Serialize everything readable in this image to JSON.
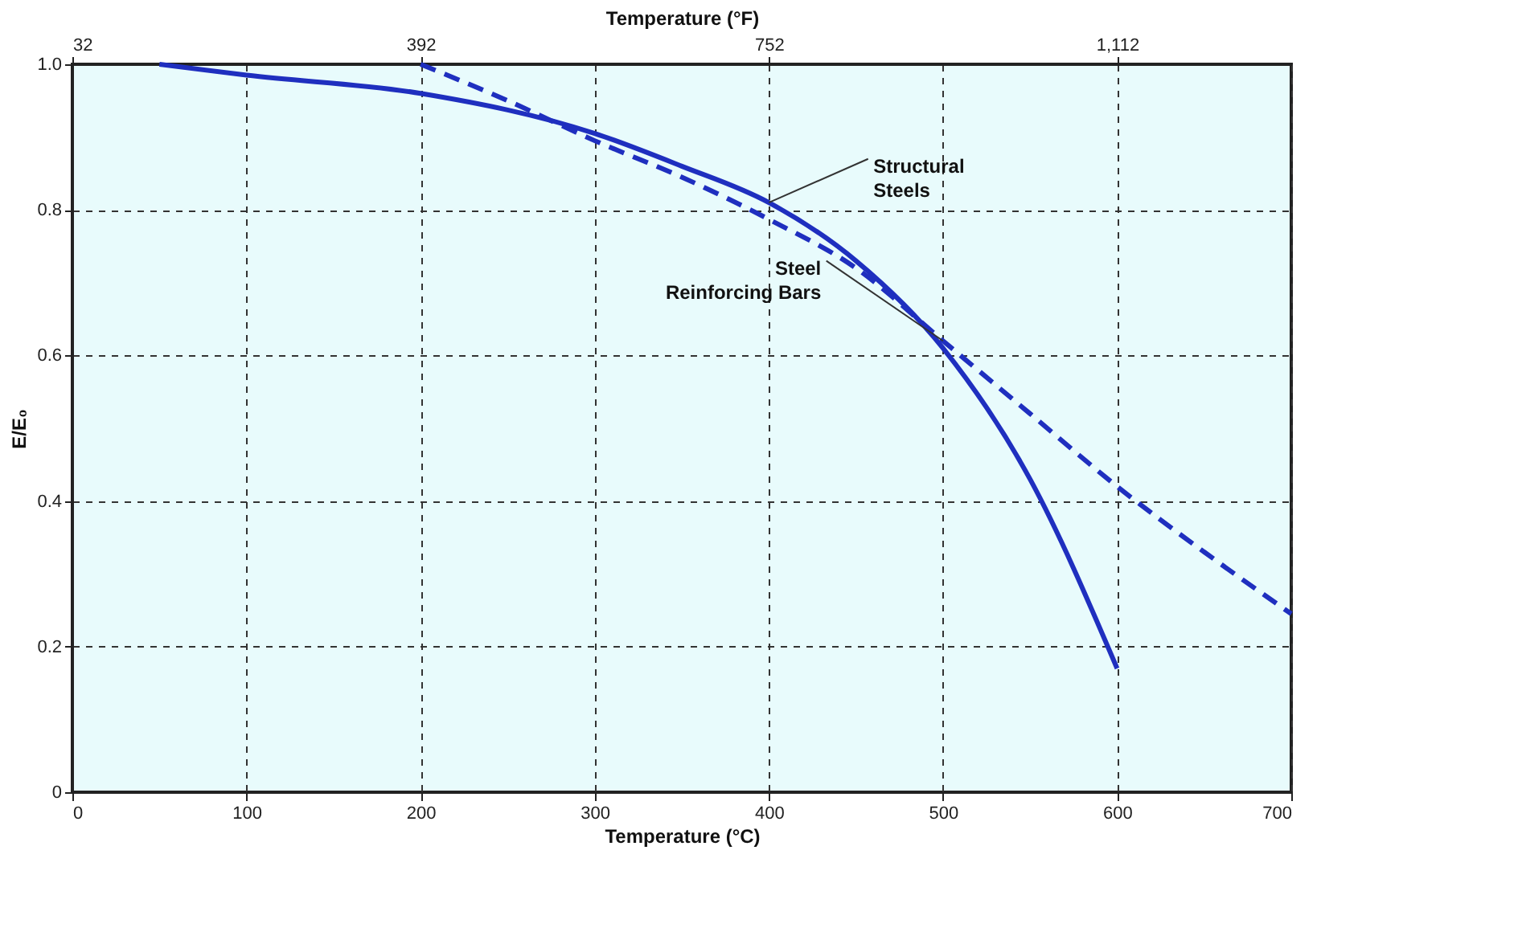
{
  "chart_data": {
    "type": "line",
    "xlabel": "Temperature (°C)",
    "x2label": "Temperature (°F)",
    "ylabel": "E/E₀",
    "xlim": [
      0,
      700
    ],
    "xticks": [
      0,
      100,
      200,
      300,
      400,
      500,
      600,
      700
    ],
    "x2lim": [
      32,
      1292
    ],
    "x2ticks": [
      32,
      392,
      752,
      {
        "value": 1112,
        "label": "1,112"
      }
    ],
    "ylim": [
      0,
      1
    ],
    "yticks": [
      0,
      0.2,
      0.4,
      0.6,
      0.8,
      {
        "value": 1,
        "label": "1.0"
      }
    ],
    "grid": true,
    "marker": "none",
    "series": [
      {
        "name": "Structural Steels",
        "color": "#1f2fbf",
        "line_style": "solid",
        "x": [
          50,
          100,
          200,
          300,
          350,
          400,
          450,
          500,
          550,
          600
        ],
        "values": [
          1.0,
          0.985,
          0.96,
          0.905,
          0.86,
          0.81,
          0.73,
          0.61,
          0.43,
          0.17
        ]
      },
      {
        "name": "Steel Reinforcing Bars",
        "color": "#1f2fbf",
        "line_style": "dashed",
        "x": [
          200,
          250,
          300,
          350,
          400,
          450,
          500,
          550,
          600,
          650,
          700
        ],
        "values": [
          1.0,
          0.95,
          0.895,
          0.845,
          0.787,
          0.72,
          0.62,
          0.52,
          0.42,
          0.33,
          0.245
        ]
      }
    ]
  }
}
